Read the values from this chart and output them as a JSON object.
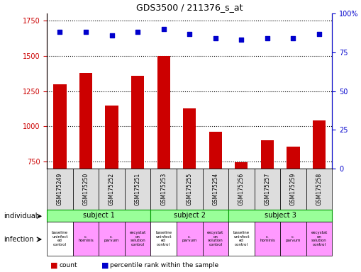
{
  "title": "GDS3500 / 211376_s_at",
  "samples": [
    "GSM175249",
    "GSM175250",
    "GSM175252",
    "GSM175251",
    "GSM175253",
    "GSM175255",
    "GSM175254",
    "GSM175256",
    "GSM175257",
    "GSM175259",
    "GSM175258"
  ],
  "counts": [
    1300,
    1380,
    1150,
    1360,
    1500,
    1130,
    960,
    745,
    900,
    855,
    1040
  ],
  "percentile_ranks": [
    88,
    88,
    86,
    88,
    90,
    87,
    84,
    83,
    84,
    84,
    87
  ],
  "ylim_left": [
    700,
    1800
  ],
  "ylim_right": [
    0,
    100
  ],
  "yticks_left": [
    750,
    1000,
    1250,
    1500,
    1750
  ],
  "yticks_right": [
    0,
    25,
    50,
    75,
    100
  ],
  "bar_color": "#cc0000",
  "dot_color": "#0000cc",
  "subjects": [
    {
      "label": "subject 1",
      "start": 0,
      "end": 4,
      "color": "#99ff99"
    },
    {
      "label": "subject 2",
      "start": 4,
      "end": 7,
      "color": "#99ff99"
    },
    {
      "label": "subject 3",
      "start": 7,
      "end": 11,
      "color": "#99ff99"
    }
  ],
  "infections": [
    {
      "label": "baseline\nuninfect\ned\ncontrol",
      "color": "#ffffff",
      "col": 0
    },
    {
      "label": "c.\nhominis",
      "color": "#ff99ff",
      "col": 1
    },
    {
      "label": "c.\nparvum",
      "color": "#ff99ff",
      "col": 2
    },
    {
      "label": "excystat\non\nsolution\ncontrol",
      "color": "#ff99ff",
      "col": 3
    },
    {
      "label": "baseline\nuninfect\ned\ncontrol",
      "color": "#ffffff",
      "col": 4
    },
    {
      "label": "c.\nparvum",
      "color": "#ff99ff",
      "col": 5
    },
    {
      "label": "excystat\non\nsolution\ncontrol",
      "color": "#ff99ff",
      "col": 6
    },
    {
      "label": "baseline\nuninfect\ned\ncontrol",
      "color": "#ffffff",
      "col": 7
    },
    {
      "label": "c.\nhominis",
      "color": "#ff99ff",
      "col": 8
    },
    {
      "label": "c.\nparvum",
      "color": "#ff99ff",
      "col": 9
    },
    {
      "label": "excystat\non\nsolution\ncontrol",
      "color": "#ff99ff",
      "col": 10
    }
  ],
  "gsm_bg_colors": [
    "#dddddd",
    "#dddddd",
    "#dddddd",
    "#dddddd",
    "#dddddd",
    "#dddddd",
    "#dddddd",
    "#dddddd",
    "#dddddd",
    "#dddddd",
    "#dddddd"
  ],
  "left_ytick_color": "#cc0000",
  "right_ytick_color": "#0000cc",
  "dotted_line_color": "#000000",
  "legend_count_color": "#cc0000",
  "legend_dot_color": "#0000cc",
  "subject_border_color": "#009900"
}
